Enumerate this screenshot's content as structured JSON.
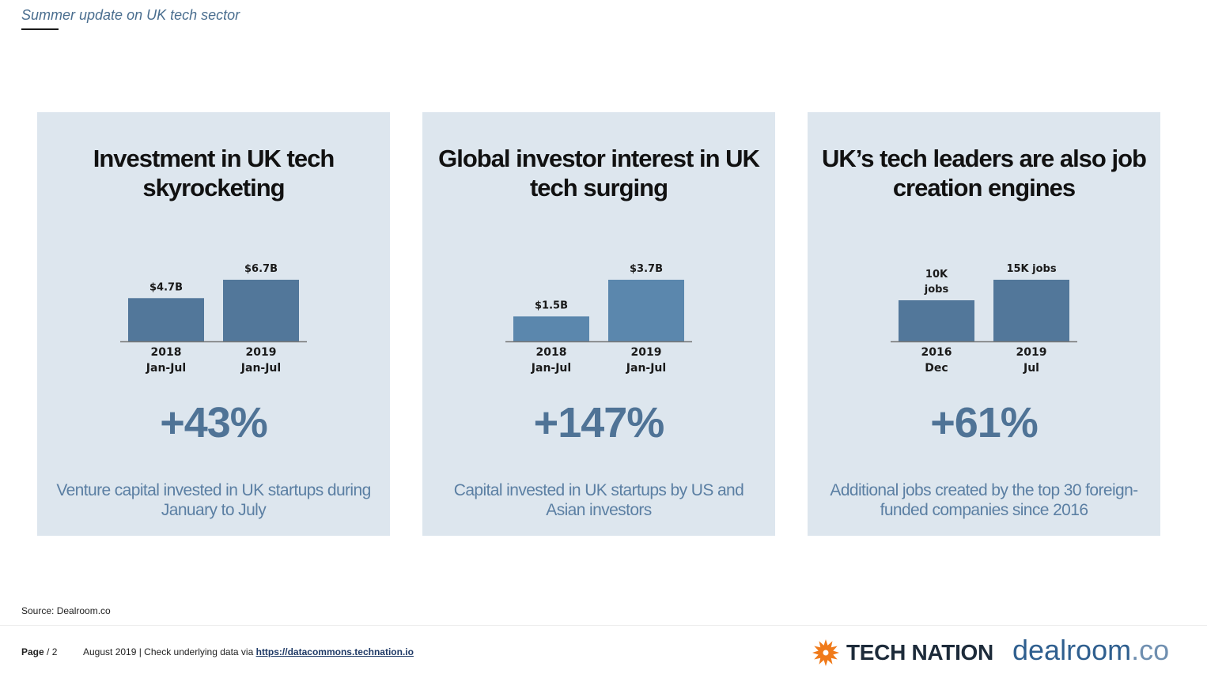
{
  "header": {
    "title": "Summer update on UK tech sector"
  },
  "panels": [
    {
      "title": "Investment in UK tech skyrocketing",
      "stat": "+43%",
      "description": "Venture capital invested in UK startups during January to July"
    },
    {
      "title": "Global investor interest in UK tech surging",
      "stat": "+147%",
      "description": "Capital invested in UK startups by US and Asian investors"
    },
    {
      "title": "UK’s tech leaders are also job creation engines",
      "stat": "+61%",
      "description": "Additional jobs created by the top 30 foreign-funded companies since 2016"
    }
  ],
  "chart_data": [
    {
      "type": "bar",
      "categories": [
        [
          "2018",
          "Jan-Jul"
        ],
        [
          "2019",
          "Jan-Jul"
        ]
      ],
      "values": [
        4.7,
        6.7
      ],
      "data_labels": [
        [
          "$4.7B"
        ],
        [
          "$6.7B"
        ]
      ],
      "ylim": [
        0,
        6.7
      ],
      "unit": "$B"
    },
    {
      "type": "bar",
      "categories": [
        [
          "2018",
          "Jan-Jul"
        ],
        [
          "2019",
          "Jan-Jul"
        ]
      ],
      "values": [
        1.5,
        3.7
      ],
      "data_labels": [
        [
          "$1.5B"
        ],
        [
          "$3.7B"
        ]
      ],
      "ylim": [
        0,
        3.7
      ],
      "unit": "$B"
    },
    {
      "type": "bar",
      "categories": [
        [
          "2016",
          "Dec"
        ],
        [
          "2019",
          "Jul"
        ]
      ],
      "values": [
        10,
        15
      ],
      "data_labels": [
        [
          "10K",
          "jobs"
        ],
        [
          "15K jobs"
        ]
      ],
      "ylim": [
        0,
        15
      ],
      "unit": "K jobs"
    }
  ],
  "colors": {
    "bar": "#52779a",
    "bar_alt": "#5b87ad",
    "panel": "#dde6ee",
    "stat": "#4f7396"
  },
  "footer": {
    "source": "Source: Dealroom.co",
    "page_label": "Page",
    "page_number": "/ 2",
    "note": "August 2019 | Check underlying data via",
    "link": "https://datacommons.technation.io",
    "logo_technation": "TECH NATION",
    "logo_dealroom": "dealroom",
    "logo_dealroom_suffix": ".co"
  }
}
